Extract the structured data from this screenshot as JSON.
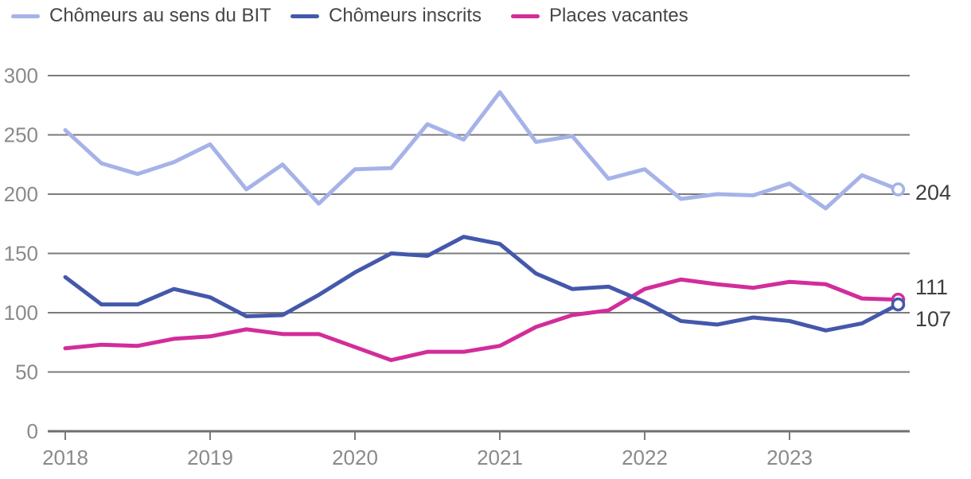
{
  "legend": {
    "items": [
      {
        "id": "bit",
        "label": "Chômeurs au sens du BIT",
        "color": "#a6b3e8"
      },
      {
        "id": "inscrits",
        "label": "Chômeurs inscrits",
        "color": "#4458ab"
      },
      {
        "id": "vacantes",
        "label": "Places vacantes",
        "color": "#d22d9a"
      }
    ]
  },
  "chart_data": {
    "type": "line",
    "title": "",
    "xlabel": "",
    "ylabel": "",
    "x_frequency": "quarterly",
    "x": [
      "2018Q1",
      "2018Q2",
      "2018Q3",
      "2018Q4",
      "2019Q1",
      "2019Q2",
      "2019Q3",
      "2019Q4",
      "2020Q1",
      "2020Q2",
      "2020Q3",
      "2020Q4",
      "2021Q1",
      "2021Q2",
      "2021Q3",
      "2021Q4",
      "2022Q1",
      "2022Q2",
      "2022Q3",
      "2022Q4",
      "2023Q1",
      "2023Q2",
      "2023Q3",
      "2023Q4"
    ],
    "x_tick_labels": [
      "2018",
      "2019",
      "2020",
      "2021",
      "2022",
      "2023"
    ],
    "y_ticks": [
      0,
      50,
      100,
      150,
      200,
      250,
      300
    ],
    "ylim": [
      0,
      300
    ],
    "grid": "horizontal",
    "legend_position": "top",
    "series": [
      {
        "name": "Chômeurs au sens du BIT",
        "color": "#a6b3e8",
        "end_label": "204",
        "end_marker": "open-circle",
        "values": [
          254,
          226,
          217,
          227,
          242,
          204,
          225,
          192,
          221,
          222,
          259,
          246,
          286,
          244,
          249,
          213,
          221,
          196,
          200,
          199,
          209,
          188,
          216,
          204
        ]
      },
      {
        "name": "Places vacantes",
        "color": "#d22d9a",
        "end_label": "111",
        "end_marker": "open-circle",
        "values": [
          70,
          73,
          72,
          78,
          80,
          86,
          82,
          82,
          71,
          60,
          67,
          67,
          72,
          88,
          98,
          102,
          120,
          128,
          124,
          121,
          126,
          124,
          112,
          111
        ]
      },
      {
        "name": "Chômeurs inscrits",
        "color": "#4458ab",
        "end_label": "107",
        "end_marker": "open-circle",
        "values": [
          130,
          107,
          107,
          120,
          113,
          97,
          98,
          115,
          134,
          150,
          148,
          164,
          158,
          133,
          120,
          122,
          109,
          93,
          90,
          96,
          93,
          85,
          91,
          107
        ]
      }
    ]
  },
  "colors": {
    "gridline": "#7b7b7b",
    "axis_line": "#6f6f6f",
    "axis_label": "#8a8a8a",
    "end_label_text": "#3e3e3e"
  }
}
